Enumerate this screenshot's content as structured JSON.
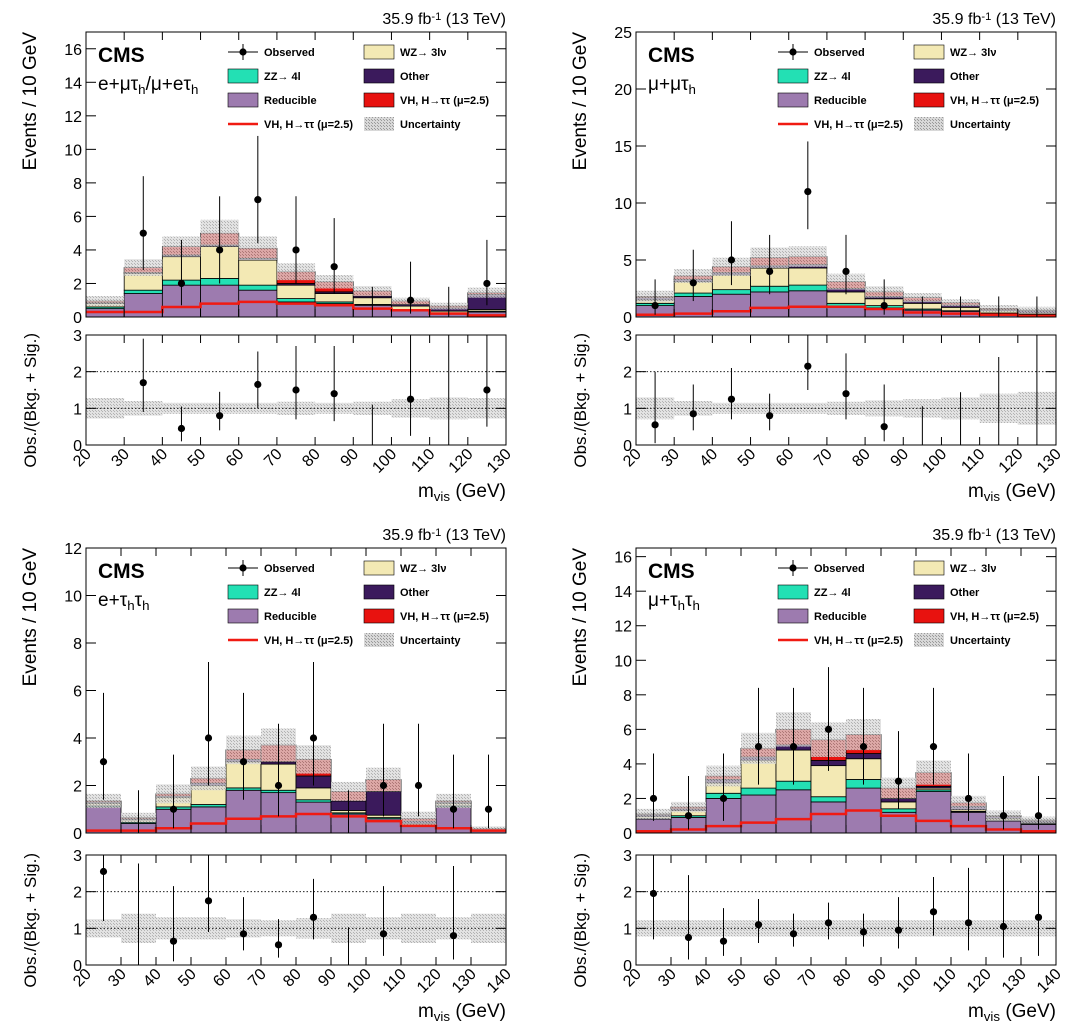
{
  "colors": {
    "reducible": "#9d7baf",
    "zz": "#23e0b4",
    "wz": "#f3e9b4",
    "other": "#3b1a5c",
    "signal": "#e8120f",
    "signal_line": "#f01a12",
    "uncertainty": "#b8b8b8"
  },
  "legend": {
    "observed": "Observed",
    "zz": "ZZ→ 4l",
    "reducible": "Reducible",
    "vh_line": "VH, H→ττ (μ=2.5)",
    "wz": "WZ→ 3lν",
    "other": "Other",
    "vh_fill": "VH, H→ττ (μ=2.5)",
    "uncertainty": "Uncertainty"
  },
  "chart_data": [
    {
      "type": "bar",
      "stacked": true,
      "cms_label": "CMS",
      "channel": "e+μτh/μ+eτh",
      "lumi": "35.9 fb⁻¹ (13 TeV)",
      "ylabel": "Events / 10 GeV",
      "ratio_ylabel": "Obs./(Bkg. + Sig.)",
      "xlabel": "mvis (GeV)",
      "xlim": [
        20,
        130
      ],
      "ylim": [
        0,
        17
      ],
      "yticks": [
        0,
        2,
        4,
        6,
        8,
        10,
        12,
        14,
        16
      ],
      "ratio_ylim": [
        0,
        3
      ],
      "ratio_yticks": [
        0,
        1,
        2,
        3
      ],
      "xticks": [
        20,
        30,
        40,
        50,
        60,
        70,
        80,
        90,
        100,
        110,
        120,
        130
      ],
      "bin_edges": [
        20,
        30,
        40,
        50,
        60,
        70,
        80,
        90,
        100,
        110,
        120,
        130
      ],
      "series": [
        {
          "name": "Reducible",
          "values": [
            0.5,
            1.4,
            1.9,
            1.9,
            1.6,
            0.9,
            0.8,
            0.7,
            0.4,
            0.2,
            0.3
          ]
        },
        {
          "name": "ZZ→ 4l",
          "values": [
            0.1,
            0.2,
            0.3,
            0.4,
            0.3,
            0.2,
            0.1,
            0.05,
            0.05,
            0.05,
            0.05
          ]
        },
        {
          "name": "WZ→ 3lν",
          "values": [
            0.2,
            1.0,
            1.4,
            1.9,
            1.5,
            0.8,
            0.5,
            0.4,
            0.2,
            0.1,
            0.1
          ]
        },
        {
          "name": "Other",
          "values": [
            0.05,
            0.05,
            0.1,
            0.1,
            0.1,
            0.1,
            0.1,
            0.1,
            0.1,
            0.2,
            0.9
          ]
        },
        {
          "name": "VH, H→ττ (μ=2.5)",
          "values": [
            0.1,
            0.3,
            0.5,
            0.7,
            0.6,
            0.7,
            0.6,
            0.3,
            0.2,
            0.1,
            0.1
          ]
        }
      ],
      "signal_line": [
        0.3,
        0.3,
        0.6,
        0.8,
        0.9,
        0.8,
        0.7,
        0.5,
        0.4,
        0.2,
        0.1
      ],
      "total_uncertainty": [
        0.3,
        0.5,
        0.6,
        0.8,
        0.7,
        0.5,
        0.4,
        0.3,
        0.2,
        0.2,
        0.3
      ],
      "observed": {
        "x": [
          35,
          45,
          55,
          65,
          75,
          85,
          95,
          105,
          115,
          125
        ],
        "y": [
          5,
          2,
          4,
          7,
          4,
          3,
          0,
          1,
          0,
          2
        ],
        "err_lo": [
          2.2,
          1.3,
          2.0,
          2.6,
          2.0,
          1.6,
          0,
          0.8,
          0,
          1.3
        ],
        "err_hi": [
          3.4,
          2.6,
          3.2,
          3.8,
          3.2,
          2.9,
          1.8,
          2.3,
          1.8,
          2.6
        ]
      },
      "ratio": {
        "x": [
          35,
          45,
          55,
          65,
          75,
          85,
          95,
          105,
          115,
          125
        ],
        "y": [
          1.7,
          0.45,
          0.8,
          1.65,
          1.5,
          1.4,
          0,
          1.25,
          0,
          1.5
        ],
        "err_lo": [
          0.8,
          0.35,
          0.4,
          0.65,
          0.8,
          0.75,
          0,
          1.0,
          0,
          1.0
        ],
        "err_hi": [
          1.2,
          0.6,
          0.65,
          0.9,
          1.2,
          1.3,
          1.1,
          1.9,
          3.0,
          1.6
        ],
        "band_lo": [
          0.72,
          0.8,
          0.85,
          0.85,
          0.85,
          0.82,
          0.85,
          0.82,
          0.75,
          0.7,
          0.72
        ],
        "band_hi": [
          1.28,
          1.2,
          1.15,
          1.15,
          1.15,
          1.18,
          1.15,
          1.18,
          1.25,
          1.3,
          1.28
        ]
      }
    },
    {
      "type": "bar",
      "stacked": true,
      "cms_label": "CMS",
      "channel": "μ+μτh",
      "lumi": "35.9 fb⁻¹ (13 TeV)",
      "ylabel": "Events / 10 GeV",
      "ratio_ylabel": "Obs./(Bkg. + Sig.)",
      "xlabel": "mvis (GeV)",
      "xlim": [
        20,
        130
      ],
      "ylim": [
        0,
        25
      ],
      "yticks": [
        0,
        5,
        10,
        15,
        20,
        25
      ],
      "ratio_ylim": [
        0,
        3
      ],
      "ratio_yticks": [
        0,
        1,
        2,
        3
      ],
      "xticks": [
        20,
        30,
        40,
        50,
        60,
        70,
        80,
        90,
        100,
        110,
        120,
        130
      ],
      "bin_edges": [
        20,
        30,
        40,
        50,
        60,
        70,
        80,
        90,
        100,
        110,
        120,
        130
      ],
      "series": [
        {
          "name": "Reducible",
          "values": [
            1.0,
            1.8,
            2.0,
            2.2,
            2.3,
            0.9,
            0.8,
            0.6,
            0.5,
            0.3,
            0.2
          ]
        },
        {
          "name": "ZZ→ 4l",
          "values": [
            0.2,
            0.3,
            0.4,
            0.5,
            0.5,
            0.3,
            0.2,
            0.1,
            0.05,
            0.05,
            0.05
          ]
        },
        {
          "name": "WZ→ 3lν",
          "values": [
            0.3,
            1.0,
            1.3,
            1.6,
            1.5,
            1.0,
            0.6,
            0.5,
            0.3,
            0.2,
            0.1
          ]
        },
        {
          "name": "Other",
          "values": [
            0.2,
            0.2,
            0.2,
            0.2,
            0.3,
            0.3,
            0.2,
            0.2,
            0.2,
            0.1,
            0.2
          ]
        },
        {
          "name": "VH, H→ττ (μ=2.5)",
          "values": [
            0.1,
            0.3,
            0.5,
            0.7,
            0.7,
            0.6,
            0.4,
            0.3,
            0.2,
            0.1,
            0.05
          ]
        }
      ],
      "signal_line": [
        0.2,
        0.3,
        0.5,
        0.8,
        0.9,
        0.9,
        0.7,
        0.4,
        0.3,
        0.2,
        0.1
      ],
      "total_uncertainty": [
        0.5,
        0.6,
        0.8,
        0.9,
        0.9,
        0.7,
        0.5,
        0.4,
        0.3,
        0.3,
        0.3
      ],
      "observed": {
        "x": [
          25,
          35,
          45,
          55,
          65,
          75,
          85,
          95,
          105,
          115,
          125
        ],
        "y": [
          1,
          3,
          5,
          4,
          11,
          4,
          1,
          0,
          0,
          0,
          0
        ],
        "err_lo": [
          0.8,
          1.6,
          2.2,
          2.0,
          3.3,
          2.0,
          0.8,
          0,
          0,
          0,
          0
        ],
        "err_hi": [
          2.3,
          2.9,
          3.4,
          3.2,
          4.4,
          3.2,
          2.3,
          1.8,
          1.8,
          1.8,
          1.8
        ]
      },
      "ratio": {
        "x": [
          25,
          35,
          45,
          55,
          65,
          75,
          85
        ],
        "y": [
          0.55,
          0.85,
          1.25,
          0.8,
          2.15,
          1.4,
          0.5
        ],
        "err_lo": [
          0.5,
          0.45,
          0.55,
          0.4,
          0.65,
          0.7,
          0.4
        ],
        "err_hi": [
          1.45,
          0.8,
          0.85,
          0.6,
          0.85,
          1.1,
          1.15
        ],
        "band_lo": [
          0.7,
          0.8,
          0.85,
          0.85,
          0.85,
          0.82,
          0.78,
          0.75,
          0.7,
          0.6,
          0.55
        ],
        "band_hi": [
          1.3,
          1.2,
          1.15,
          1.15,
          1.15,
          1.18,
          1.22,
          1.25,
          1.3,
          1.4,
          1.45
        ]
      }
    },
    {
      "type": "bar",
      "stacked": true,
      "cms_label": "CMS",
      "channel": "e+τhτh",
      "lumi": "35.9 fb⁻¹ (13 TeV)",
      "ylabel": "Events / 10 GeV",
      "ratio_ylabel": "Obs./(Bkg. + Sig.)",
      "xlabel": "mvis (GeV)",
      "xlim": [
        20,
        140
      ],
      "ylim": [
        0,
        12
      ],
      "yticks": [
        0,
        2,
        4,
        6,
        8,
        10,
        12
      ],
      "ratio_ylim": [
        0,
        3
      ],
      "ratio_yticks": [
        0,
        1,
        2,
        3
      ],
      "xticks": [
        20,
        30,
        40,
        50,
        60,
        70,
        80,
        90,
        100,
        110,
        120,
        130,
        140
      ],
      "bin_edges": [
        20,
        30,
        40,
        50,
        60,
        70,
        80,
        90,
        100,
        110,
        120,
        130,
        140
      ],
      "series": [
        {
          "name": "Reducible",
          "values": [
            1.1,
            0.4,
            1.0,
            1.1,
            1.8,
            1.7,
            1.3,
            0.8,
            0.6,
            0.3,
            1.1,
            0.1
          ]
        },
        {
          "name": "ZZ→ 4l",
          "values": [
            0.05,
            0.05,
            0.1,
            0.1,
            0.1,
            0.1,
            0.1,
            0.05,
            0.05,
            0.05,
            0.05,
            0.02
          ]
        },
        {
          "name": "WZ→ 3lν",
          "values": [
            0.1,
            0.1,
            0.4,
            0.8,
            1.1,
            1.1,
            0.5,
            0.1,
            0.1,
            0.05,
            0.1,
            0.02
          ]
        },
        {
          "name": "Other",
          "values": [
            0.05,
            0.05,
            0.05,
            0.1,
            0.1,
            0.1,
            0.5,
            0.4,
            1.0,
            0.1,
            0.05,
            0.02
          ]
        },
        {
          "name": "VH, H→ττ (μ=2.5)",
          "values": [
            0.05,
            0.05,
            0.1,
            0.2,
            0.4,
            0.7,
            0.7,
            0.4,
            0.5,
            0.1,
            0.05,
            0.02
          ]
        }
      ],
      "signal_line": [
        0.1,
        0.1,
        0.2,
        0.4,
        0.6,
        0.7,
        0.8,
        0.7,
        0.5,
        0.3,
        0.2,
        0.1
      ],
      "total_uncertainty": [
        0.3,
        0.2,
        0.4,
        0.5,
        0.6,
        0.7,
        0.6,
        0.4,
        0.5,
        0.3,
        0.3,
        0.1
      ],
      "observed": {
        "x": [
          25,
          35,
          45,
          55,
          65,
          75,
          85,
          95,
          105,
          115,
          125,
          135
        ],
        "y": [
          3,
          0,
          1,
          4,
          3,
          2,
          4,
          0,
          2,
          2,
          1,
          1
        ],
        "err_lo": [
          1.6,
          0,
          0.8,
          2.0,
          1.6,
          1.3,
          2.0,
          0,
          1.3,
          1.3,
          0.8,
          0.8
        ],
        "err_hi": [
          2.9,
          1.8,
          2.3,
          3.2,
          2.9,
          2.6,
          3.2,
          1.8,
          2.6,
          2.6,
          2.3,
          2.3
        ]
      },
      "ratio": {
        "x": [
          25,
          45,
          55,
          65,
          75,
          85,
          105,
          125
        ],
        "y": [
          2.55,
          0.65,
          1.75,
          0.85,
          0.55,
          1.3,
          0.85,
          0.8
        ],
        "err_lo": [
          1.35,
          0.55,
          0.85,
          0.45,
          0.35,
          0.6,
          0.6,
          0.65
        ],
        "err_hi": [
          1.5,
          1.5,
          1.4,
          1.0,
          0.7,
          1.05,
          1.3,
          1.9
        ],
        "band_lo": [
          0.75,
          0.6,
          0.7,
          0.7,
          0.75,
          0.78,
          0.72,
          0.6,
          0.7,
          0.6,
          0.7,
          0.6
        ],
        "band_hi": [
          1.25,
          1.4,
          1.3,
          1.3,
          1.25,
          1.22,
          1.28,
          1.4,
          1.3,
          1.4,
          1.3,
          1.4
        ]
      }
    },
    {
      "type": "bar",
      "stacked": true,
      "cms_label": "CMS",
      "channel": "μ+τhτh",
      "lumi": "35.9 fb⁻¹ (13 TeV)",
      "ylabel": "Events / 10 GeV",
      "ratio_ylabel": "Obs./(Bkg. + Sig.)",
      "xlabel": "mvis (GeV)",
      "xlim": [
        20,
        140
      ],
      "ylim": [
        0,
        16.5
      ],
      "yticks": [
        0,
        2,
        4,
        6,
        8,
        10,
        12,
        14,
        16
      ],
      "ratio_ylim": [
        0,
        3
      ],
      "ratio_yticks": [
        0,
        1,
        2,
        3
      ],
      "xticks": [
        20,
        30,
        40,
        50,
        60,
        70,
        80,
        90,
        100,
        110,
        120,
        130,
        140
      ],
      "bin_edges": [
        20,
        30,
        40,
        50,
        60,
        70,
        80,
        90,
        100,
        110,
        120,
        130,
        140
      ],
      "series": [
        {
          "name": "Reducible",
          "values": [
            0.8,
            0.9,
            2.0,
            2.2,
            2.5,
            1.8,
            2.6,
            1.2,
            2.4,
            1.2,
            0.7,
            0.5
          ]
        },
        {
          "name": "ZZ→ 4l",
          "values": [
            0.05,
            0.1,
            0.3,
            0.4,
            0.5,
            0.3,
            0.5,
            0.2,
            0.1,
            0.05,
            0.05,
            0.05
          ]
        },
        {
          "name": "WZ→ 3lν",
          "values": [
            0.1,
            0.3,
            0.6,
            1.6,
            1.8,
            1.8,
            1.2,
            0.4,
            0.1,
            0.1,
            0.1,
            0.05
          ]
        },
        {
          "name": "Other",
          "values": [
            0.1,
            0.1,
            0.2,
            0.2,
            0.3,
            0.3,
            0.3,
            0.2,
            0.1,
            0.2,
            0.1,
            0.1
          ]
        },
        {
          "name": "VH, H→ττ (μ=2.5)",
          "values": [
            0.05,
            0.1,
            0.2,
            0.5,
            0.9,
            1.2,
            1.1,
            0.6,
            0.8,
            0.2,
            0.05,
            0.05
          ]
        }
      ],
      "signal_line": [
        0.1,
        0.2,
        0.4,
        0.6,
        0.8,
        1.1,
        1.3,
        1.0,
        0.7,
        0.4,
        0.2,
        0.1
      ],
      "total_uncertainty": [
        0.3,
        0.3,
        0.6,
        0.9,
        1.0,
        1.0,
        0.9,
        0.6,
        0.7,
        0.4,
        0.3,
        0.2
      ],
      "observed": {
        "x": [
          25,
          35,
          45,
          55,
          65,
          75,
          85,
          95,
          105,
          115,
          125,
          135
        ],
        "y": [
          2,
          1,
          2,
          5,
          5,
          6,
          5,
          3,
          5,
          2,
          1,
          1
        ],
        "err_lo": [
          1.3,
          0.8,
          1.3,
          2.2,
          2.2,
          2.4,
          2.2,
          1.6,
          2.2,
          1.3,
          0.8,
          0.8
        ],
        "err_hi": [
          2.6,
          2.3,
          2.6,
          3.4,
          3.4,
          3.6,
          3.4,
          2.9,
          3.4,
          2.6,
          2.3,
          2.3
        ]
      },
      "ratio": {
        "x": [
          25,
          35,
          45,
          55,
          65,
          75,
          85,
          95,
          105,
          115,
          125,
          135
        ],
        "y": [
          1.95,
          0.75,
          0.65,
          1.1,
          0.85,
          1.15,
          0.9,
          0.95,
          1.45,
          1.15,
          1.05,
          1.3
        ],
        "err_lo": [
          1.25,
          0.6,
          0.4,
          0.5,
          0.35,
          0.45,
          0.4,
          0.5,
          0.65,
          0.75,
          0.85,
          1.05
        ],
        "err_hi": [
          1.25,
          1.7,
          0.9,
          0.7,
          0.55,
          0.55,
          0.5,
          0.9,
          0.95,
          1.5,
          1.95,
          1.8
        ]
      }
    }
  ]
}
